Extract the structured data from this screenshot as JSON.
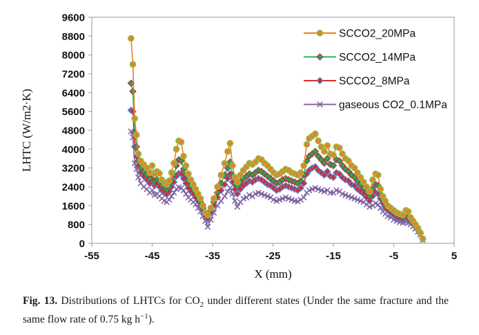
{
  "figure": {
    "caption": {
      "fig_label": "Fig. 13.",
      "part1": " Distributions of LHTCs for CO",
      "sub1": "2",
      "part2": " under different states (Under the same fracture and the same flow rate of 0.75 kg h",
      "sup1": "−1",
      "part3": ")."
    }
  },
  "chart_data": {
    "type": "line",
    "title": "",
    "xlabel": "X (mm)",
    "ylabel": "LHTC (W/m2·K)",
    "xlim": [
      -55,
      5
    ],
    "ylim": [
      0,
      9600
    ],
    "x_ticks": [
      -55,
      -45,
      -35,
      -25,
      -15,
      -5,
      5
    ],
    "y_ticks": [
      0,
      800,
      1600,
      2400,
      3200,
      4000,
      4800,
      5600,
      6400,
      7200,
      8000,
      8800,
      9600
    ],
    "grid": false,
    "legend_position": "top-right-inside",
    "axis_color": "#a8a8a8",
    "x": [
      -48.5,
      -48.2,
      -47.9,
      -47.6,
      -47.3,
      -46.9,
      -46.4,
      -45.9,
      -45.4,
      -45.0,
      -44.6,
      -44.2,
      -43.8,
      -43.4,
      -43.0,
      -42.6,
      -42.2,
      -41.8,
      -41.4,
      -41.0,
      -40.6,
      -40.2,
      -39.8,
      -39.4,
      -39.0,
      -38.6,
      -38.2,
      -37.8,
      -37.4,
      -37.0,
      -36.6,
      -36.2,
      -35.8,
      -35.3,
      -34.8,
      -34.2,
      -33.6,
      -33.0,
      -32.5,
      -32.1,
      -31.7,
      -31.3,
      -30.9,
      -30.4,
      -29.9,
      -29.4,
      -28.9,
      -28.4,
      -27.9,
      -27.4,
      -26.9,
      -26.4,
      -25.9,
      -25.4,
      -24.9,
      -24.4,
      -23.9,
      -23.4,
      -22.9,
      -22.4,
      -21.9,
      -21.4,
      -20.9,
      -20.4,
      -19.9,
      -19.4,
      -19.0,
      -18.5,
      -18.0,
      -17.5,
      -17.0,
      -16.5,
      -16.0,
      -15.5,
      -15.0,
      -14.5,
      -14.0,
      -13.5,
      -13.0,
      -12.5,
      -12.0,
      -11.5,
      -11.0,
      -10.5,
      -10.0,
      -9.5,
      -9.0,
      -8.5,
      -8.0,
      -7.6,
      -7.2,
      -6.8,
      -6.4,
      -6.0,
      -5.5,
      -5.0,
      -4.5,
      -4.0,
      -3.5,
      -3.0,
      -2.6,
      -2.2,
      -1.8,
      -1.4,
      -1.0,
      -0.6,
      -0.2
    ],
    "series": [
      {
        "name": "SCCO2_20MPa",
        "marker": "circle",
        "line_color": "#E8821E",
        "marker_fill": "#E8821E",
        "marker_edge": "#97B84F",
        "values": [
          8700,
          7600,
          5300,
          4600,
          3800,
          3500,
          3350,
          3200,
          3000,
          3300,
          2950,
          3050,
          2970,
          2700,
          2580,
          2500,
          2650,
          3000,
          3400,
          4000,
          4350,
          4300,
          3700,
          3300,
          2950,
          2700,
          2500,
          2300,
          2100,
          1900,
          1600,
          1300,
          1200,
          1500,
          1900,
          2400,
          2900,
          3400,
          3900,
          4250,
          3300,
          2800,
          2600,
          2900,
          3100,
          3250,
          3400,
          3350,
          3450,
          3600,
          3550,
          3400,
          3300,
          3150,
          3000,
          2900,
          2950,
          3050,
          3150,
          3100,
          3000,
          2950,
          2900,
          3000,
          3300,
          4200,
          4450,
          4550,
          4650,
          4350,
          4100,
          3900,
          4150,
          3800,
          3750,
          4100,
          4050,
          3800,
          3600,
          3500,
          3300,
          3200,
          3000,
          2800,
          2600,
          2400,
          2200,
          2700,
          2950,
          2900,
          2300,
          2000,
          1800,
          1600,
          1500,
          1400,
          1300,
          1250,
          1200,
          1400,
          1350,
          1100,
          950,
          800,
          650,
          450,
          200
        ]
      },
      {
        "name": "SCCO2_14MPa",
        "marker": "diamond",
        "line_color": "#2FAE59",
        "marker_fill": "#2FA253",
        "marker_edge": "#9E4040",
        "values": [
          6800,
          6450,
          4700,
          4100,
          3500,
          3200,
          3050,
          2900,
          2750,
          2950,
          2650,
          2700,
          2600,
          2450,
          2350,
          2280,
          2400,
          2650,
          2900,
          3300,
          3550,
          3500,
          3150,
          2900,
          2650,
          2450,
          2300,
          2150,
          1950,
          1750,
          1500,
          1250,
          1150,
          1400,
          1750,
          2150,
          2550,
          2900,
          3200,
          3450,
          2900,
          2550,
          2400,
          2600,
          2750,
          2850,
          2950,
          2900,
          3000,
          3100,
          3050,
          2950,
          2850,
          2750,
          2650,
          2550,
          2600,
          2700,
          2750,
          2700,
          2650,
          2600,
          2550,
          2650,
          2900,
          3500,
          3700,
          3800,
          3900,
          3700,
          3550,
          3400,
          3600,
          3350,
          3300,
          3550,
          3500,
          3300,
          3150,
          3050,
          2900,
          2800,
          2650,
          2500,
          2350,
          2200,
          2000,
          2300,
          2500,
          2450,
          2100,
          1850,
          1650,
          1500,
          1400,
          1300,
          1200,
          1150,
          1100,
          1200,
          1150,
          1000,
          880,
          750,
          600,
          430,
          190
        ]
      },
      {
        "name": "SCCO2_8MPa",
        "marker": "diamond",
        "line_color": "#E02A2A",
        "marker_fill": "#D42B2B",
        "marker_edge": "#5B7FD4",
        "values": [
          5650,
          5600,
          4100,
          3700,
          3300,
          3000,
          2850,
          2700,
          2550,
          2700,
          2450,
          2500,
          2400,
          2250,
          2150,
          2080,
          2200,
          2400,
          2600,
          2850,
          2970,
          2950,
          2750,
          2550,
          2350,
          2200,
          2100,
          1950,
          1800,
          1600,
          1400,
          1150,
          1050,
          1300,
          1600,
          1950,
          2250,
          2500,
          2750,
          2950,
          2600,
          2300,
          2100,
          2300,
          2450,
          2550,
          2650,
          2600,
          2700,
          2750,
          2700,
          2600,
          2500,
          2450,
          2350,
          2250,
          2300,
          2400,
          2450,
          2400,
          2350,
          2300,
          2250,
          2350,
          2550,
          2950,
          3100,
          3200,
          3250,
          3100,
          3000,
          2900,
          3050,
          2850,
          2800,
          3000,
          2950,
          2800,
          2700,
          2650,
          2500,
          2450,
          2300,
          2200,
          2100,
          1950,
          1800,
          2000,
          2150,
          2100,
          1900,
          1700,
          1500,
          1400,
          1300,
          1200,
          1100,
          1050,
          1000,
          1050,
          1000,
          920,
          820,
          700,
          570,
          410,
          180
        ]
      },
      {
        "name": "gaseous CO2_0.1MPa",
        "marker": "x",
        "line_color": "#8064A2",
        "marker_fill": "none",
        "marker_edge": "#8064A2",
        "values": [
          4750,
          4500,
          3400,
          3150,
          2800,
          2550,
          2400,
          2300,
          2150,
          2250,
          2050,
          2100,
          2000,
          1900,
          1800,
          1750,
          1850,
          2000,
          2150,
          2300,
          2380,
          2350,
          2250,
          2100,
          1950,
          1850,
          1750,
          1650,
          1500,
          1350,
          1150,
          950,
          700,
          1000,
          1300,
          1600,
          1800,
          2000,
          2200,
          2350,
          2100,
          1800,
          1550,
          1750,
          1900,
          1950,
          2050,
          2000,
          2100,
          2150,
          2100,
          2050,
          2000,
          1950,
          1850,
          1800,
          1850,
          1900,
          1950,
          1900,
          1850,
          1800,
          1780,
          1850,
          1950,
          2150,
          2250,
          2300,
          2350,
          2300,
          2250,
          2200,
          2250,
          2150,
          2150,
          2250,
          2200,
          2100,
          2050,
          2000,
          1950,
          1900,
          1850,
          1800,
          1750,
          1650,
          1550,
          1600,
          1700,
          1650,
          1500,
          1350,
          1250,
          1150,
          1100,
          1000,
          950,
          900,
          870,
          900,
          870,
          800,
          720,
          620,
          500,
          370,
          150
        ]
      }
    ]
  }
}
